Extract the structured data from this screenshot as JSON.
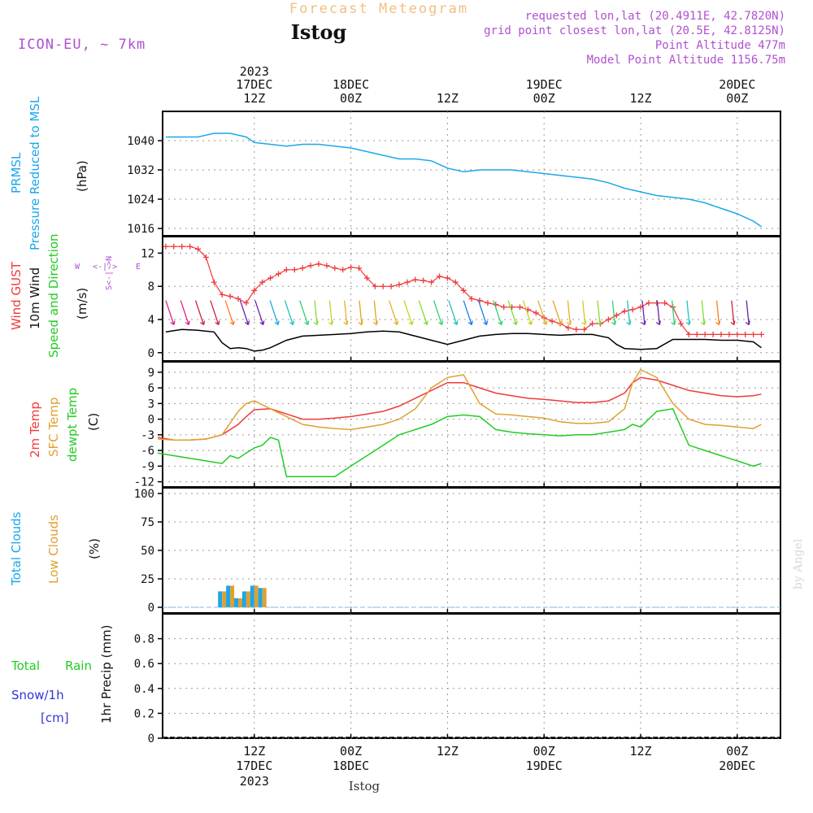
{
  "header": {
    "title": "Forecast Meteogram",
    "location": "Istog",
    "model": "ICON-EU, ~ 7km",
    "requested": "requested lon,lat (20.4911E, 42.7820N)",
    "gridpoint": "grid point closest lon,lat (20.5E, 42.8125N)",
    "point_alt": "Point Altitude 477m",
    "model_alt": "Model Point Altitude 1156.75m",
    "year": "2023",
    "footer_location": "Istog",
    "watermark": "by Angel"
  },
  "time_axis": {
    "ticks": [
      {
        "time": "12Z",
        "date": "17DEC",
        "year": "2023"
      },
      {
        "time": "00Z",
        "date": "18DEC",
        "year": ""
      },
      {
        "time": "12Z",
        "date": "",
        "year": ""
      },
      {
        "time": "00Z",
        "date": "19DEC",
        "year": ""
      },
      {
        "time": "12Z",
        "date": "",
        "year": ""
      },
      {
        "time": "00Z",
        "date": "20DEC",
        "year": ""
      }
    ]
  },
  "panel_labels": {
    "p1": {
      "a": "PRMSL",
      "b": "Pressure Reduced to MSL",
      "unit": "(hPa)"
    },
    "p2": {
      "a": "Wind GUST",
      "b": "10m Wind",
      "c": "Speed and Direction",
      "unit": "(m/s)",
      "compass": "N/S/E/W"
    },
    "p3": {
      "a": "2m Temp",
      "b": "SFC Temp",
      "c": "dewpt Temp",
      "unit": "(C)"
    },
    "p4": {
      "a": "Total Clouds",
      "b": "Low Clouds",
      "unit": "(%)"
    },
    "p5": {
      "a": "Total",
      "b": "Rain",
      "c": "Snow/1h",
      "d": "[cm]",
      "unit": "1hr Precip (mm)"
    }
  },
  "colors": {
    "pressure": "#1aa7ec",
    "gust": "#ef3a3a",
    "wind": "#000000",
    "temp2m": "#ef3a3a",
    "sfctemp": "#e0a030",
    "dewpt": "#22cc22",
    "totalcloud": "#1aa7ec",
    "lowcloud": "#e0a030",
    "title": "#f0c080",
    "meta": "#b050d0",
    "rain": "#22cc22",
    "snow": "#3333dd"
  },
  "chart_data": [
    {
      "type": "line",
      "title": "PRMSL Pressure Reduced to MSL",
      "ylabel": "(hPa)",
      "x_unit": "hours from 17DEC 00Z",
      "ylim": [
        1014,
        1048
      ],
      "yticks": [
        1016,
        1024,
        1032,
        1040
      ],
      "grid": true,
      "series": [
        {
          "name": "PRMSL",
          "x": [
            1,
            3,
            5,
            7,
            9,
            11,
            12,
            14,
            16,
            18,
            20,
            22,
            24,
            26,
            28,
            30,
            32,
            34,
            36,
            38,
            40,
            42,
            44,
            46,
            48,
            50,
            52,
            54,
            56,
            58,
            60,
            62,
            64,
            66,
            68,
            70,
            72,
            74,
            75
          ],
          "values": [
            1041,
            1041,
            1041,
            1042,
            1042,
            1041,
            1039.5,
            1039,
            1038.5,
            1039,
            1039,
            1038.5,
            1038,
            1037,
            1036,
            1035,
            1035,
            1034.5,
            1032.5,
            1031.5,
            1032,
            1032,
            1032,
            1031.5,
            1031,
            1030.5,
            1030,
            1029.5,
            1028.5,
            1027,
            1026,
            1025,
            1024.5,
            1024,
            1023,
            1021.5,
            1020,
            1018,
            1016.5
          ]
        }
      ]
    },
    {
      "type": "line",
      "title": "Wind GUST 10m Wind Speed and Direction",
      "ylabel": "(m/s)",
      "x_unit": "hours from 17DEC 00Z",
      "ylim": [
        -1,
        14
      ],
      "yticks": [
        0,
        4,
        8,
        12
      ],
      "grid": true,
      "series": [
        {
          "name": "Wind GUST",
          "x": [
            1,
            2,
            3,
            4,
            5,
            6,
            7,
            8,
            9,
            10,
            11,
            12,
            13,
            14,
            15,
            16,
            17,
            18,
            19,
            20,
            21,
            22,
            23,
            24,
            25,
            26,
            27,
            28,
            29,
            30,
            31,
            32,
            33,
            34,
            35,
            36,
            37,
            38,
            39,
            40,
            41,
            42,
            43,
            44,
            45,
            46,
            47,
            48,
            49,
            50,
            51,
            52,
            53,
            54,
            55,
            56,
            57,
            58,
            59,
            60,
            61,
            62,
            63,
            64,
            65,
            66,
            67,
            68,
            69,
            70,
            71,
            72,
            73,
            74,
            75
          ],
          "values": [
            12.8,
            12.8,
            12.8,
            12.8,
            12.5,
            11.5,
            8.5,
            7,
            6.8,
            6.5,
            6,
            7.5,
            8.5,
            9,
            9.5,
            10,
            10,
            10.2,
            10.5,
            10.7,
            10.5,
            10.2,
            10,
            10.3,
            10.2,
            9,
            8,
            8,
            8,
            8.2,
            8.5,
            8.8,
            8.7,
            8.5,
            9.2,
            9,
            8.5,
            7.5,
            6.5,
            6.3,
            6,
            5.8,
            5.5,
            5.5,
            5.5,
            5.2,
            4.8,
            4.2,
            3.8,
            3.5,
            3,
            2.8,
            2.8,
            3.5,
            3.5,
            4,
            4.5,
            5,
            5.2,
            5.5,
            6,
            6,
            6,
            5.5,
            3.5,
            2.2,
            2.2,
            2.2,
            2.2,
            2.2,
            2.2,
            2.2,
            2.2,
            2.2,
            2.2
          ]
        },
        {
          "name": "10m Wind",
          "x": [
            1,
            3,
            5,
            7,
            8,
            9,
            10,
            11,
            12,
            13,
            14,
            16,
            18,
            20,
            22,
            24,
            26,
            28,
            30,
            32,
            34,
            36,
            38,
            40,
            42,
            44,
            46,
            48,
            50,
            52,
            54,
            56,
            57,
            58,
            60,
            62,
            64,
            66,
            68,
            70,
            72,
            74,
            75
          ],
          "values": [
            2.5,
            2.8,
            2.7,
            2.5,
            1.2,
            0.5,
            0.6,
            0.5,
            0.2,
            0.3,
            0.6,
            1.5,
            2,
            2.1,
            2.2,
            2.3,
            2.5,
            2.6,
            2.5,
            2,
            1.5,
            1,
            1.5,
            2,
            2.2,
            2.3,
            2.3,
            2.2,
            2.1,
            2.2,
            2.2,
            1.8,
            1,
            0.5,
            0.4,
            0.5,
            1.6,
            1.6,
            1.6,
            1.5,
            1.5,
            1.3,
            0.6
          ]
        }
      ]
    },
    {
      "type": "line",
      "title": "2m Temp SFC Temp dewpt Temp",
      "ylabel": "(C)",
      "x_unit": "hours from 17DEC 00Z",
      "ylim": [
        -13,
        11
      ],
      "yticks": [
        -12,
        -9,
        -6,
        -3,
        0,
        3,
        6,
        9
      ],
      "grid": true,
      "series": [
        {
          "name": "2m Temp",
          "x": [
            0,
            2,
            4,
            6,
            8,
            10,
            11,
            12,
            14,
            16,
            18,
            20,
            22,
            24,
            26,
            28,
            30,
            32,
            34,
            36,
            38,
            40,
            42,
            44,
            46,
            48,
            50,
            52,
            54,
            56,
            58,
            59,
            60,
            62,
            64,
            66,
            68,
            70,
            72,
            74,
            75
          ],
          "values": [
            -3.5,
            -4,
            -4,
            -3.8,
            -3,
            -1,
            0.5,
            1.8,
            2,
            1,
            0,
            0,
            0.2,
            0.5,
            1,
            1.5,
            2.5,
            4,
            5.5,
            7,
            7,
            6,
            5,
            4.5,
            4,
            3.8,
            3.5,
            3.2,
            3.2,
            3.5,
            5,
            7,
            8,
            7.5,
            6.5,
            5.5,
            5,
            4.5,
            4.3,
            4.5,
            4.8
          ]
        },
        {
          "name": "SFC Temp",
          "x": [
            0,
            2,
            4,
            6,
            8,
            10,
            11,
            12,
            14,
            16,
            18,
            20,
            22,
            24,
            26,
            28,
            30,
            32,
            34,
            36,
            38,
            40,
            42,
            44,
            46,
            48,
            50,
            52,
            54,
            56,
            58,
            59,
            60,
            62,
            64,
            66,
            68,
            70,
            72,
            74,
            75
          ],
          "values": [
            -3.8,
            -4,
            -4,
            -3.8,
            -3,
            1.5,
            3,
            3.5,
            2,
            0.5,
            -1,
            -1.5,
            -1.8,
            -2,
            -1.5,
            -1,
            0,
            2,
            6,
            8,
            8.5,
            3,
            1,
            0.8,
            0.5,
            0.2,
            -0.5,
            -0.8,
            -0.8,
            -0.5,
            2,
            7,
            9.5,
            8,
            3,
            0,
            -1,
            -1.2,
            -1.5,
            -1.8,
            -1
          ]
        },
        {
          "name": "dewpt Temp",
          "x": [
            0,
            2,
            4,
            6,
            8,
            9,
            10,
            11,
            12,
            13,
            14,
            15,
            16,
            18,
            20,
            22,
            24,
            26,
            28,
            30,
            32,
            34,
            36,
            38,
            40,
            42,
            44,
            46,
            48,
            50,
            52,
            54,
            56,
            58,
            59,
            60,
            62,
            64,
            66,
            68,
            70,
            72,
            74,
            75
          ],
          "values": [
            -6.5,
            -7,
            -7.5,
            -8,
            -8.5,
            -7,
            -7.5,
            -6.5,
            -5.5,
            -5,
            -3.5,
            -4,
            -11,
            -11,
            -11,
            -11,
            -9,
            -7,
            -5,
            -3,
            -2,
            -1,
            0.5,
            0.8,
            0.5,
            -2,
            -2.5,
            -2.8,
            -3,
            -3.2,
            -3,
            -3,
            -2.5,
            -2,
            -1,
            -1.5,
            1.5,
            2,
            -5,
            -6,
            -7,
            -8,
            -9,
            -8.5
          ]
        }
      ]
    },
    {
      "type": "bar",
      "title": "Total Clouds Low Clouds",
      "ylabel": "(%)",
      "x_unit": "hours from 17DEC 00Z",
      "ylim": [
        -5,
        105
      ],
      "yticks": [
        0,
        25,
        50,
        75,
        100
      ],
      "grid": true,
      "x": [
        8,
        9,
        10,
        11,
        12,
        13
      ],
      "series": [
        {
          "name": "Total Clouds",
          "values": [
            14,
            19,
            8,
            14,
            19,
            17
          ]
        },
        {
          "name": "Low Clouds",
          "values": [
            14,
            19,
            8,
            14,
            19,
            17
          ]
        }
      ]
    },
    {
      "type": "bar",
      "title": "Total Rain Snow/1h",
      "ylabel": "1hr Precip (mm)",
      "x_unit": "hours from 17DEC 00Z",
      "ylim": [
        0,
        1.0
      ],
      "yticks": [
        0,
        0.2,
        0.4,
        0.6,
        0.8
      ],
      "grid": true,
      "series": [
        {
          "name": "Total Rain",
          "values": []
        }
      ]
    }
  ]
}
